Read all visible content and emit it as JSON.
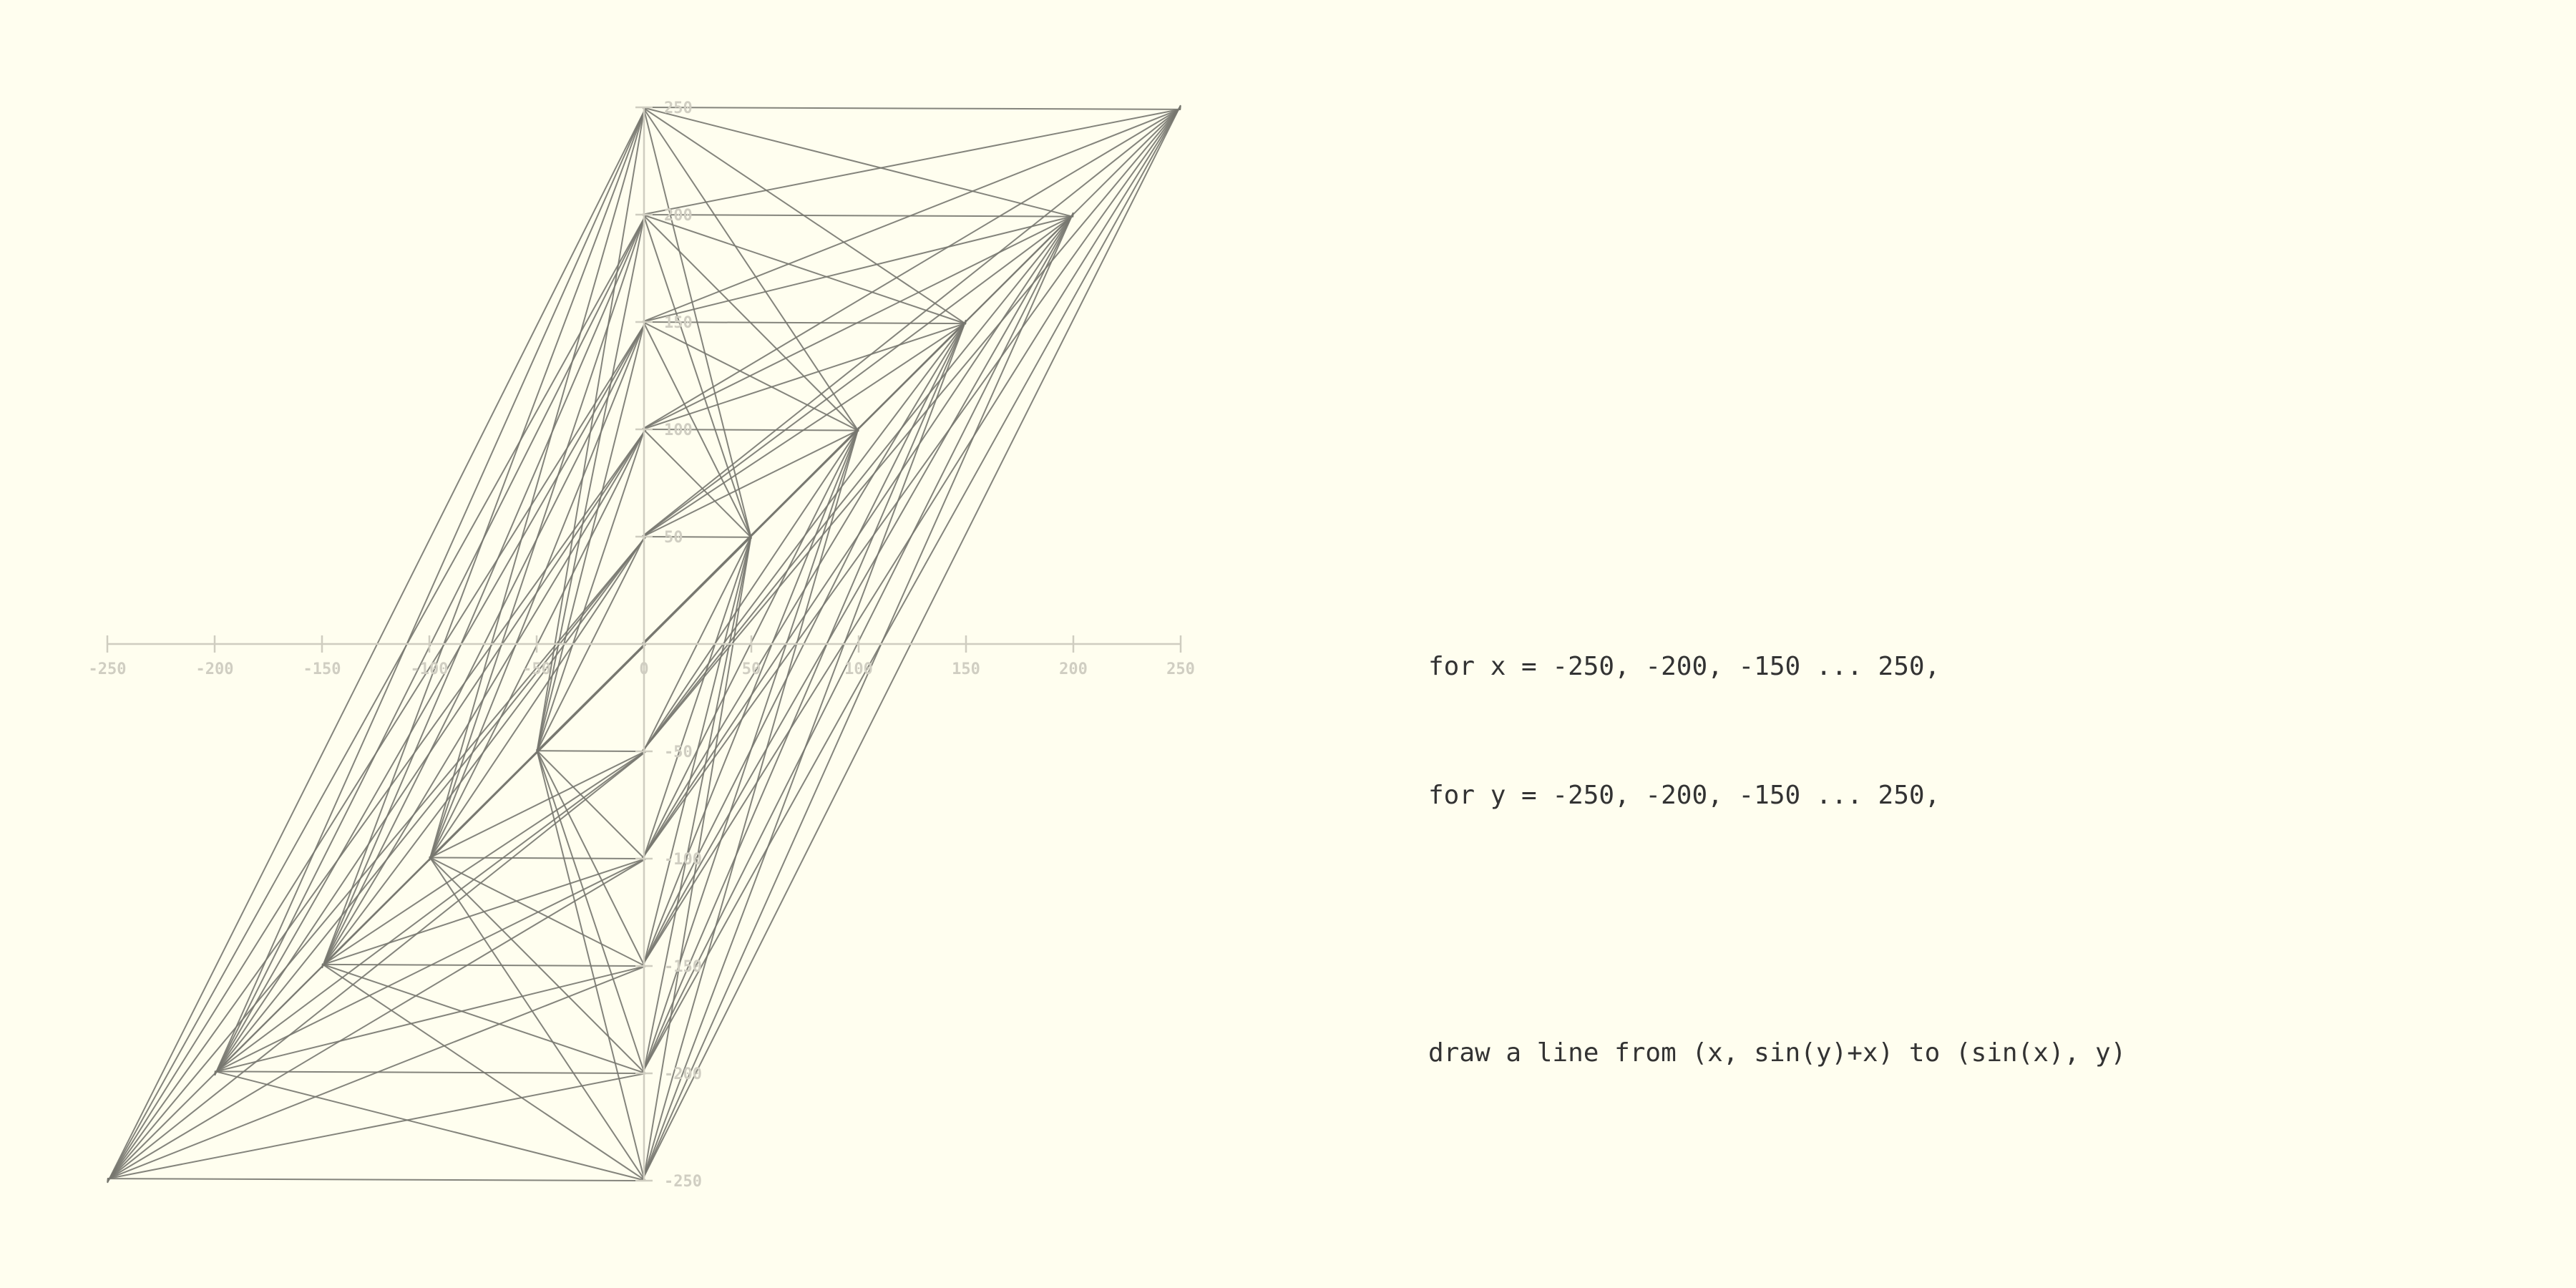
{
  "caption": {
    "line1": "for x = -250, -200, -150 ... 250,",
    "line2": "for y = -250, -200, -150 ... 250,",
    "line3": "",
    "line4": "draw a line from (x, sin(y)+x) to (sin(x), y)"
  },
  "colors": {
    "background": "#fffeef",
    "mesh": "#77776f",
    "axis": "#cfcdc0",
    "axis_label": "#d0cec2",
    "text": "#333333"
  },
  "chart_data": {
    "type": "line",
    "x_ticks": [
      -250,
      -200,
      -150,
      -100,
      -50,
      0,
      50,
      100,
      150,
      200,
      250
    ],
    "y_ticks": [
      250,
      200,
      150,
      100,
      50,
      -50,
      -100,
      -150,
      -200,
      -250
    ],
    "x_range": [
      -250,
      250
    ],
    "y_range": [
      -250,
      250
    ],
    "grid_values": [
      -250,
      -200,
      -150,
      -100,
      -50,
      0,
      50,
      100,
      150,
      200,
      250
    ],
    "from_point": "(x, sin(y)+x)",
    "to_point": "(sin(x), y)"
  }
}
